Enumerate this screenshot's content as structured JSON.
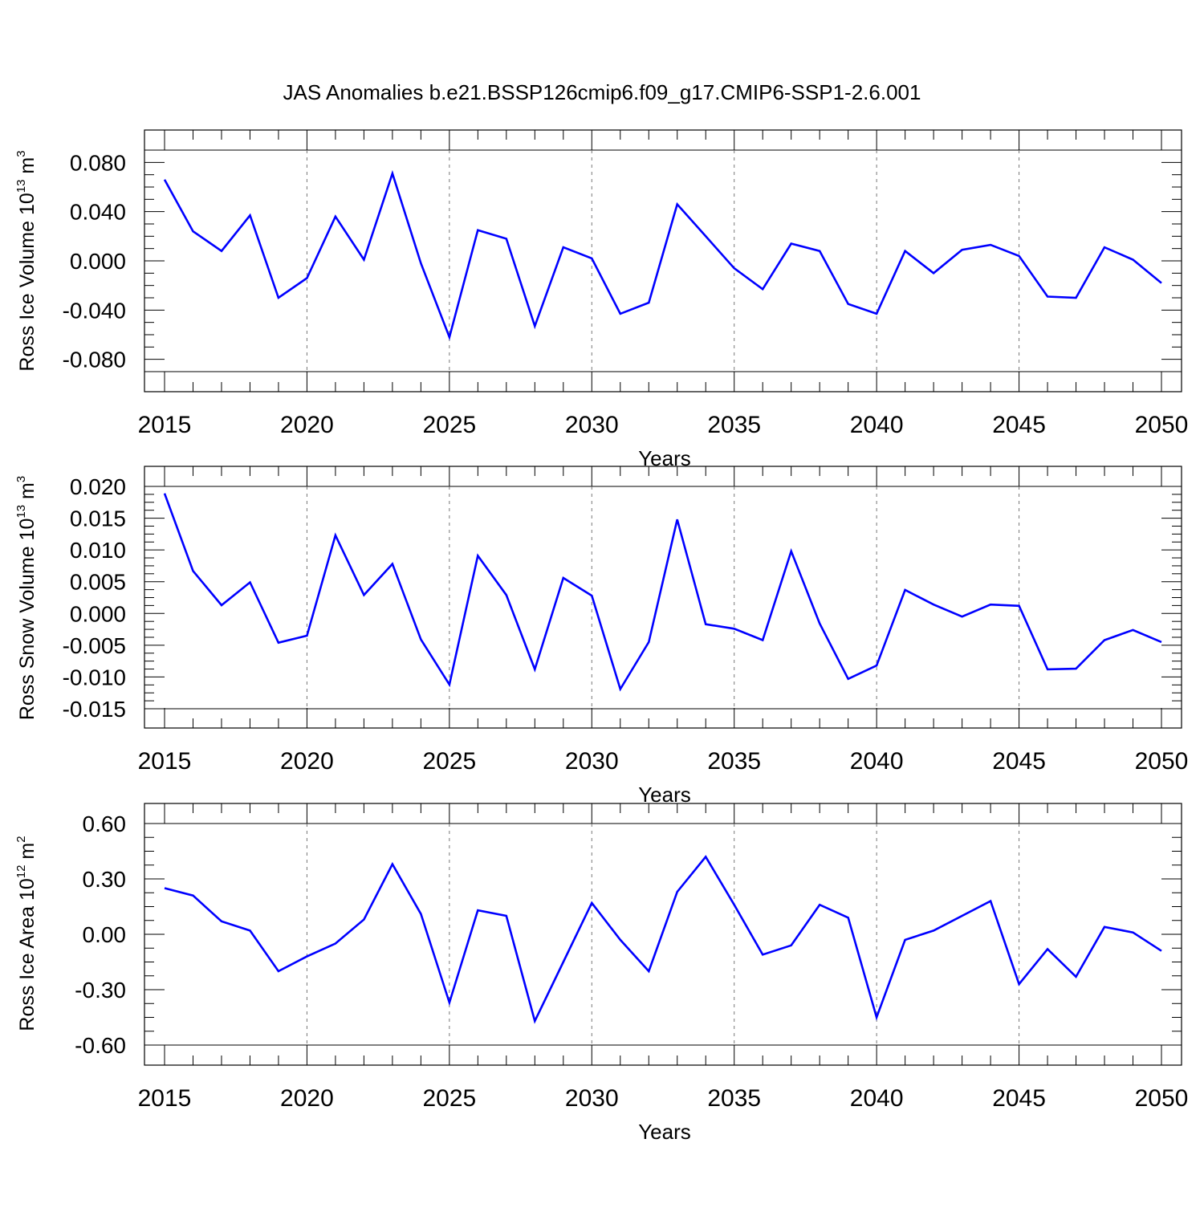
{
  "title": "JAS Anomalies b.e21.BSSP126cmip6.f09_g17.CMIP6-SSP1-2.6.001",
  "line_color": "#0000ff",
  "chart_data": [
    {
      "type": "line",
      "ylabel_main": "Ross Ice Volume 10",
      "ylabel_exp": "13",
      "ylabel_unit": " m",
      "ylabel_unit_exp": "3",
      "xlabel": "Years",
      "xlim": [
        2015,
        2050
      ],
      "ylim": [
        -0.09,
        0.09
      ],
      "x_ticks": [
        "2015",
        "2020",
        "2025",
        "2030",
        "2035",
        "2040",
        "2045",
        "2050"
      ],
      "y_ticks": [
        "0.080",
        "0.040",
        "0.000",
        "-0.040",
        "-0.080"
      ],
      "grid": "dashed vertical lines at major x ticks",
      "x": [
        2015,
        2016,
        2017,
        2018,
        2019,
        2020,
        2021,
        2022,
        2023,
        2024,
        2025,
        2026,
        2027,
        2028,
        2029,
        2030,
        2031,
        2032,
        2033,
        2034,
        2035,
        2036,
        2037,
        2038,
        2039,
        2040,
        2041,
        2042,
        2043,
        2044,
        2045,
        2046,
        2047,
        2048,
        2049,
        2050
      ],
      "values": [
        0.066,
        0.024,
        0.008,
        0.037,
        -0.03,
        -0.014,
        0.036,
        0.001,
        0.071,
        -0.002,
        -0.062,
        0.025,
        0.018,
        -0.053,
        0.011,
        0.002,
        -0.043,
        -0.034,
        0.046,
        0.02,
        -0.006,
        -0.023,
        0.014,
        0.008,
        -0.035,
        -0.043,
        0.008,
        -0.01,
        0.009,
        0.013,
        0.004,
        -0.029,
        -0.03,
        0.011,
        0.001,
        -0.018
      ]
    },
    {
      "type": "line",
      "ylabel_main": "Ross Snow Volume 10",
      "ylabel_exp": "13",
      "ylabel_unit": " m",
      "ylabel_unit_exp": "3",
      "xlabel": "Years",
      "xlim": [
        2015,
        2050
      ],
      "ylim": [
        -0.015,
        0.02
      ],
      "x_ticks": [
        "2015",
        "2020",
        "2025",
        "2030",
        "2035",
        "2040",
        "2045",
        "2050"
      ],
      "y_ticks": [
        "0.020",
        "0.015",
        "0.010",
        "0.005",
        "0.000",
        "-0.005",
        "-0.010",
        "-0.015"
      ],
      "grid": "dashed vertical lines at major x ticks",
      "x": [
        2015,
        2016,
        2017,
        2018,
        2019,
        2020,
        2021,
        2022,
        2023,
        2024,
        2025,
        2026,
        2027,
        2028,
        2029,
        2030,
        2031,
        2032,
        2033,
        2034,
        2035,
        2036,
        2037,
        2038,
        2039,
        2040,
        2041,
        2042,
        2043,
        2044,
        2045,
        2046,
        2047,
        2048,
        2049,
        2050
      ],
      "values": [
        0.0189,
        0.0067,
        0.0013,
        0.0049,
        -0.0046,
        -0.0035,
        0.0123,
        0.0029,
        0.0078,
        -0.0041,
        -0.0112,
        0.0091,
        0.0029,
        -0.0088,
        0.0056,
        0.0028,
        -0.0119,
        -0.0045,
        0.0148,
        -0.0017,
        -0.0024,
        -0.0042,
        0.0098,
        -0.0016,
        -0.0103,
        -0.0082,
        0.0037,
        0.0014,
        -0.0005,
        0.0014,
        0.0012,
        -0.0088,
        -0.0087,
        -0.0042,
        -0.0026,
        -0.0045
      ]
    },
    {
      "type": "line",
      "ylabel_main": "Ross Ice Area 10",
      "ylabel_exp": "12",
      "ylabel_unit": " m",
      "ylabel_unit_exp": "2",
      "xlabel": "Years",
      "xlim": [
        2015,
        2050
      ],
      "ylim": [
        -0.6,
        0.6
      ],
      "x_ticks": [
        "2015",
        "2020",
        "2025",
        "2030",
        "2035",
        "2040",
        "2045",
        "2050"
      ],
      "y_ticks": [
        "0.60",
        "0.30",
        "0.00",
        "-0.30",
        "-0.60"
      ],
      "grid": "dashed vertical lines at major x ticks",
      "x": [
        2015,
        2016,
        2017,
        2018,
        2019,
        2020,
        2021,
        2022,
        2023,
        2024,
        2025,
        2026,
        2027,
        2028,
        2029,
        2030,
        2031,
        2032,
        2033,
        2034,
        2035,
        2036,
        2037,
        2038,
        2039,
        2040,
        2041,
        2042,
        2043,
        2044,
        2045,
        2046,
        2047,
        2048,
        2049,
        2050
      ],
      "values": [
        0.25,
        0.21,
        0.07,
        0.02,
        -0.2,
        -0.12,
        -0.05,
        0.08,
        0.38,
        0.11,
        -0.37,
        0.13,
        0.1,
        -0.47,
        -0.15,
        0.17,
        -0.03,
        -0.2,
        0.23,
        0.42,
        0.16,
        -0.11,
        -0.06,
        0.16,
        0.09,
        -0.45,
        -0.03,
        0.02,
        0.1,
        0.18,
        -0.27,
        -0.08,
        -0.23,
        0.04,
        0.01,
        -0.09
      ]
    }
  ]
}
